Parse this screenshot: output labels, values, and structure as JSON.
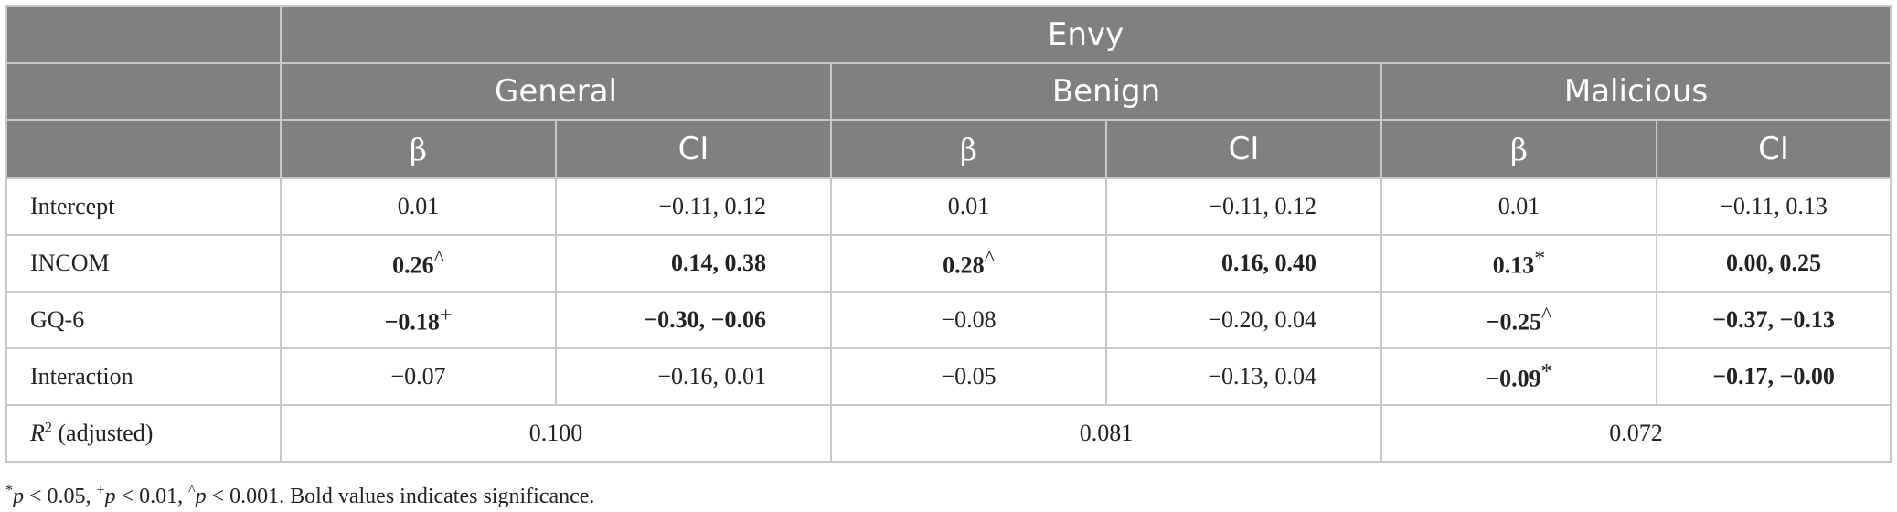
{
  "table": {
    "top_header": "Envy",
    "groups": [
      "General",
      "Benign",
      "Malicious"
    ],
    "subheaders": [
      "β",
      "CI",
      "β",
      "CI",
      "β",
      "CI"
    ],
    "rows": [
      {
        "label": "Intercept",
        "cells": [
          {
            "value": "0.01",
            "mark": ""
          },
          {
            "value": "−0.11, 0.12",
            "mark": ""
          },
          {
            "value": "0.01",
            "mark": ""
          },
          {
            "value": "−0.11, 0.12",
            "mark": ""
          },
          {
            "value": "0.01",
            "mark": ""
          },
          {
            "value": "−0.11, 0.13",
            "mark": ""
          }
        ]
      },
      {
        "label": "INCOM",
        "cells": [
          {
            "value": "0.26",
            "mark": "^"
          },
          {
            "value": "0.14, 0.38",
            "mark": ""
          },
          {
            "value": "0.28",
            "mark": "^"
          },
          {
            "value": "0.16, 0.40",
            "mark": ""
          },
          {
            "value": "0.13",
            "mark": "*"
          },
          {
            "value": "0.00, 0.25",
            "mark": ""
          }
        ]
      },
      {
        "label": "GQ-6",
        "cells": [
          {
            "value": "−0.18",
            "mark": "+"
          },
          {
            "value": "−0.30, −0.06",
            "mark": ""
          },
          {
            "value": "−0.08",
            "mark": ""
          },
          {
            "value": "−0.20, 0.04",
            "mark": ""
          },
          {
            "value": "−0.25",
            "mark": "^"
          },
          {
            "value": "−0.37, −0.13",
            "mark": ""
          }
        ]
      },
      {
        "label": "Interaction",
        "cells": [
          {
            "value": "−0.07",
            "mark": ""
          },
          {
            "value": "−0.16, 0.01",
            "mark": ""
          },
          {
            "value": "−0.05",
            "mark": ""
          },
          {
            "value": "−0.13, 0.04",
            "mark": ""
          },
          {
            "value": "−0.09",
            "mark": "*"
          },
          {
            "value": "−0.17, −0.00",
            "mark": ""
          }
        ]
      }
    ],
    "r2": {
      "label_var": "R",
      "label_sup": "2",
      "label_rest": " (adjusted)",
      "values": [
        "0.100",
        "0.081",
        "0.072"
      ]
    }
  },
  "footnote": {
    "m1": "*",
    "v1": "p",
    "t1": " < 0.05, ",
    "m2": "+",
    "v2": "p",
    "t2": " < 0.01, ",
    "m3": "^",
    "v3": "p",
    "t3": " < 0.001. Bold values indicates significance."
  }
}
